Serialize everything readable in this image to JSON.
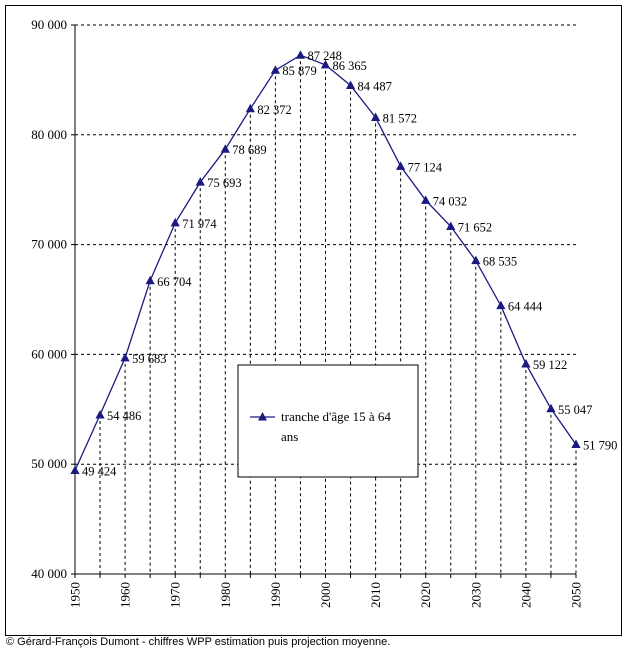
{
  "chart_data": {
    "type": "line",
    "x": [
      1950,
      1955,
      1960,
      1965,
      1970,
      1975,
      1980,
      1985,
      1990,
      1995,
      2000,
      2005,
      2010,
      2015,
      2020,
      2025,
      2030,
      2035,
      2040,
      2045,
      2050
    ],
    "series": [
      {
        "name": "tranche d'âge 15 à 64 ans",
        "values": [
          49424,
          54486,
          59683,
          66704,
          71974,
          75693,
          78689,
          82372,
          85879,
          87248,
          86365,
          84487,
          81572,
          77124,
          74032,
          71652,
          68535,
          64444,
          59122,
          55047,
          51790
        ],
        "value_labels": [
          "49 424",
          "54 486",
          "59 683",
          "66 704",
          "71 974",
          "75 693",
          "78 689",
          "82 372",
          "85 879",
          "87 248",
          "86 365",
          "84 487",
          "81 572",
          "77 124",
          "74 032",
          "71 652",
          "68 535",
          "64 444",
          "59 122",
          "55 047",
          "51 790"
        ],
        "color": "#1a1a80",
        "marker": "triangle"
      }
    ],
    "x_ticks": [
      "1950",
      "1960",
      "1970",
      "1980",
      "1990",
      "2000",
      "2010",
      "2020",
      "2030",
      "2040",
      "2050"
    ],
    "y_ticks": [
      "40 000",
      "50 000",
      "60 000",
      "70 000",
      "80 000",
      "90 000"
    ],
    "ylim": [
      40000,
      90000
    ],
    "xlim": [
      1950,
      2050
    ],
    "grid": true,
    "legend_position": "center",
    "title": "",
    "xlabel": "",
    "ylabel": ""
  },
  "legend_label": "tranche d'âge 15 à 64 ans",
  "credit": "© Gérard-François Dumont - chiffres WPP estimation puis projection moyenne."
}
